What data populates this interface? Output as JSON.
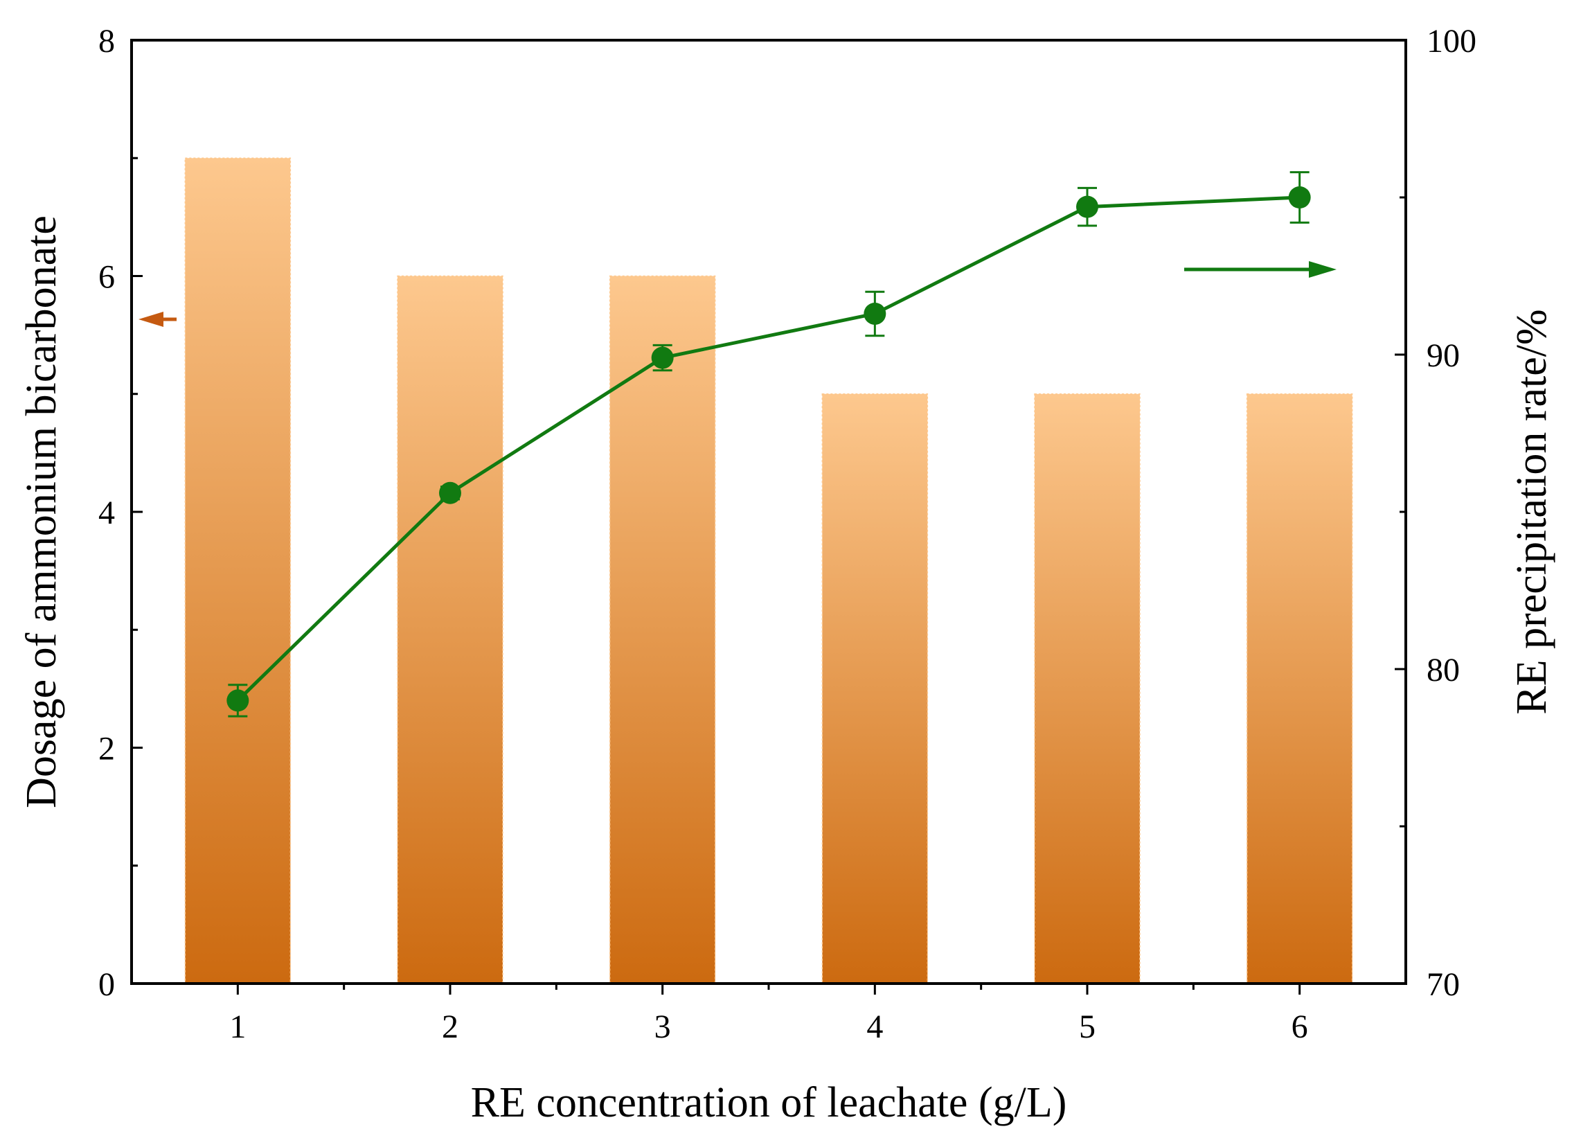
{
  "chart_data": {
    "type": "bar",
    "title": "",
    "xlabel": "RE concentration of leachate (g/L)",
    "ylabel": "Dosage of ammonium bicarbonate",
    "y2label": "RE precipitation rate/%",
    "categories": [
      "1",
      "2",
      "3",
      "4",
      "5",
      "6"
    ],
    "xlim": [
      0.5,
      6.5
    ],
    "ylim": [
      0,
      8
    ],
    "y2lim": [
      70,
      100
    ],
    "yticks": [
      "0",
      "2",
      "4",
      "6",
      "8"
    ],
    "y2ticks": [
      "70",
      "80",
      "90",
      "100"
    ],
    "series": [
      {
        "name": "Dosage of ammonium bicarbonate",
        "type": "bar",
        "axis": "left",
        "values": [
          7,
          6,
          6,
          5,
          5,
          5
        ],
        "color": "#cc6a10",
        "color_light": "#fdc88e"
      },
      {
        "name": "RE precipitation rate",
        "type": "line",
        "axis": "right",
        "values": [
          79.0,
          85.6,
          89.9,
          91.3,
          94.7,
          95.0
        ],
        "errors": [
          0.5,
          0.2,
          0.4,
          0.7,
          0.6,
          0.8
        ],
        "color": "#117a11"
      }
    ],
    "annotations": [
      {
        "type": "arrow",
        "direction": "left",
        "axis": "left",
        "color": "#c55a11"
      },
      {
        "type": "arrow",
        "direction": "right",
        "axis": "right",
        "color": "#117a11"
      }
    ]
  }
}
